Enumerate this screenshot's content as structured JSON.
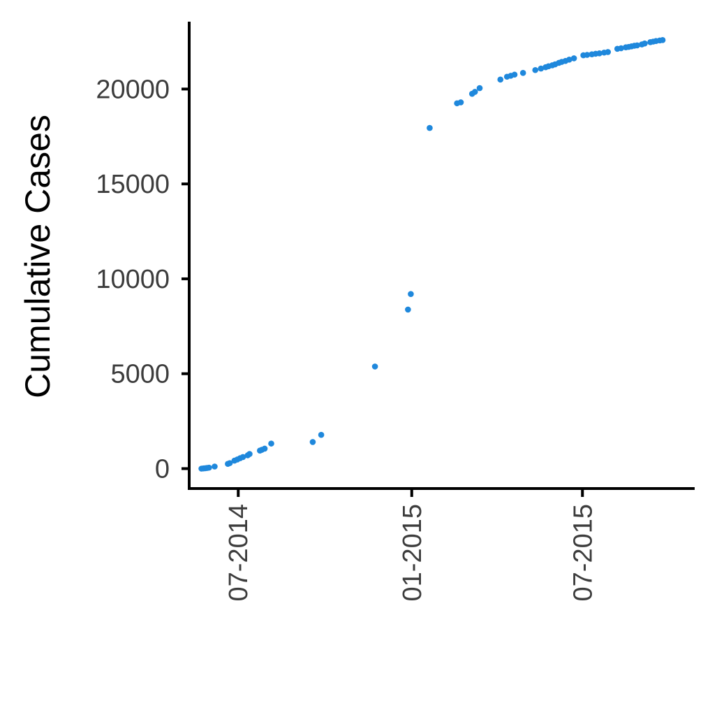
{
  "chart_data": {
    "type": "scatter",
    "title": "",
    "xlabel": "",
    "ylabel": "Cumulative Cases",
    "x_axis_type": "date",
    "x_tick_format": "MM-YYYY",
    "xlim": [
      "2014-05-10",
      "2015-10-28"
    ],
    "ylim": [
      -1050,
      23550
    ],
    "yticks": [
      0,
      5000,
      10000,
      15000,
      20000
    ],
    "ytick_labels": [
      "0",
      "5000",
      "10000",
      "15000",
      "20000"
    ],
    "xticks": [
      "2014-07-01",
      "2015-01-01",
      "2015-07-01"
    ],
    "xtick_labels": [
      "07-2014",
      "01-2015",
      "07-2015"
    ],
    "grid": false,
    "legend": "none",
    "point_color": "#1f88dc",
    "series": [
      {
        "points": [
          [
            "2014-05-23",
            0
          ],
          [
            "2014-05-25",
            10
          ],
          [
            "2014-05-27",
            20
          ],
          [
            "2014-05-29",
            35
          ],
          [
            "2014-05-31",
            50
          ],
          [
            "2014-06-06",
            110
          ],
          [
            "2014-06-20",
            250
          ],
          [
            "2014-06-22",
            290
          ],
          [
            "2014-06-27",
            420
          ],
          [
            "2014-06-30",
            480
          ],
          [
            "2014-07-03",
            550
          ],
          [
            "2014-07-06",
            610
          ],
          [
            "2014-07-11",
            700
          ],
          [
            "2014-07-13",
            770
          ],
          [
            "2014-07-24",
            950
          ],
          [
            "2014-07-26",
            990
          ],
          [
            "2014-07-29",
            1050
          ],
          [
            "2014-08-05",
            1320
          ],
          [
            "2014-09-18",
            1400
          ],
          [
            "2014-09-27",
            1780
          ],
          [
            "2014-11-23",
            5380
          ],
          [
            "2014-12-28",
            8380
          ],
          [
            "2014-12-31",
            9200
          ],
          [
            "2015-01-20",
            17950
          ],
          [
            "2015-02-18",
            19250
          ],
          [
            "2015-02-22",
            19300
          ],
          [
            "2015-03-06",
            19750
          ],
          [
            "2015-03-09",
            19850
          ],
          [
            "2015-03-14",
            20050
          ],
          [
            "2015-04-05",
            20500
          ],
          [
            "2015-04-12",
            20650
          ],
          [
            "2015-04-16",
            20700
          ],
          [
            "2015-04-20",
            20760
          ],
          [
            "2015-04-29",
            20850
          ],
          [
            "2015-05-12",
            21000
          ],
          [
            "2015-05-18",
            21080
          ],
          [
            "2015-05-23",
            21150
          ],
          [
            "2015-05-26",
            21200
          ],
          [
            "2015-05-30",
            21250
          ],
          [
            "2015-06-02",
            21300
          ],
          [
            "2015-06-06",
            21380
          ],
          [
            "2015-06-09",
            21430
          ],
          [
            "2015-06-13",
            21480
          ],
          [
            "2015-06-17",
            21550
          ],
          [
            "2015-06-22",
            21620
          ],
          [
            "2015-07-02",
            21780
          ],
          [
            "2015-07-06",
            21800
          ],
          [
            "2015-07-11",
            21830
          ],
          [
            "2015-07-15",
            21860
          ],
          [
            "2015-07-19",
            21880
          ],
          [
            "2015-07-24",
            21920
          ],
          [
            "2015-07-28",
            21950
          ],
          [
            "2015-08-07",
            22120
          ],
          [
            "2015-08-11",
            22150
          ],
          [
            "2015-08-16",
            22200
          ],
          [
            "2015-08-19",
            22220
          ],
          [
            "2015-08-22",
            22250
          ],
          [
            "2015-08-25",
            22280
          ],
          [
            "2015-08-28",
            22300
          ],
          [
            "2015-09-02",
            22350
          ],
          [
            "2015-09-05",
            22400
          ],
          [
            "2015-09-11",
            22470
          ],
          [
            "2015-09-14",
            22500
          ],
          [
            "2015-09-17",
            22530
          ],
          [
            "2015-09-21",
            22560
          ],
          [
            "2015-09-24",
            22580
          ]
        ]
      }
    ]
  }
}
